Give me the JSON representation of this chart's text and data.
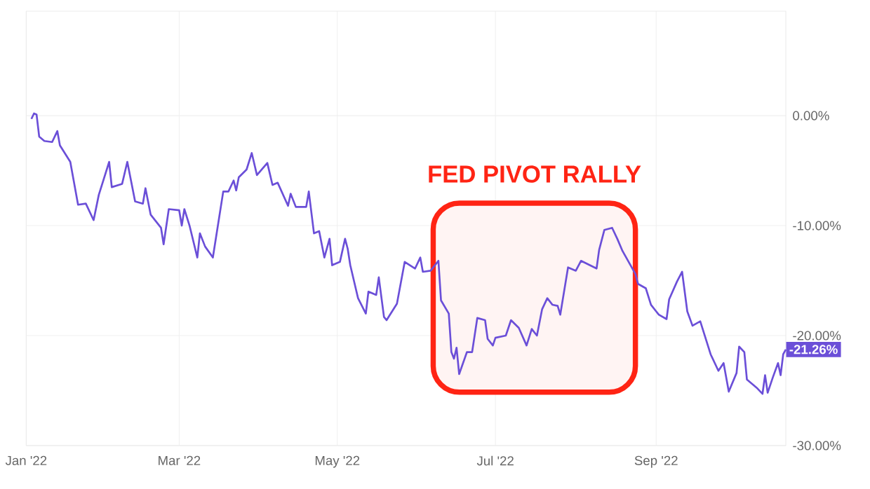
{
  "chart_data": {
    "type": "line",
    "x": [
      "2022-01-03",
      "2022-01-04",
      "2022-01-05",
      "2022-01-06",
      "2022-01-08",
      "2022-01-11",
      "2022-01-13",
      "2022-01-14",
      "2022-01-18",
      "2022-01-19",
      "2022-01-21",
      "2022-01-24",
      "2022-01-27",
      "2022-01-29",
      "2022-02-02",
      "2022-02-03",
      "2022-02-07",
      "2022-02-09",
      "2022-02-12",
      "2022-02-15",
      "2022-02-16",
      "2022-02-18",
      "2022-02-22",
      "2022-02-23",
      "2022-02-25",
      "2022-03-01",
      "2022-03-02",
      "2022-03-03",
      "2022-03-05",
      "2022-03-08",
      "2022-03-09",
      "2022-03-11",
      "2022-03-14",
      "2022-03-18",
      "2022-03-20",
      "2022-03-22",
      "2022-03-23",
      "2022-03-24",
      "2022-03-27",
      "2022-03-29",
      "2022-03-31",
      "2022-04-04",
      "2022-04-06",
      "2022-04-08",
      "2022-04-12",
      "2022-04-13",
      "2022-04-15",
      "2022-04-19",
      "2022-04-20",
      "2022-04-22",
      "2022-04-24",
      "2022-04-26",
      "2022-04-28",
      "2022-04-29",
      "2022-05-02",
      "2022-05-04",
      "2022-05-05",
      "2022-05-06",
      "2022-05-09",
      "2022-05-12",
      "2022-05-13",
      "2022-05-16",
      "2022-05-17",
      "2022-05-19",
      "2022-05-20",
      "2022-05-24",
      "2022-05-27",
      "2022-05-31",
      "2022-06-02",
      "2022-06-03",
      "2022-06-06",
      "2022-06-09",
      "2022-06-10",
      "2022-06-13",
      "2022-06-14",
      "2022-06-15",
      "2022-06-16",
      "2022-06-17",
      "2022-06-20",
      "2022-06-22",
      "2022-06-24",
      "2022-06-27",
      "2022-06-28",
      "2022-06-30",
      "2022-07-01",
      "2022-07-05",
      "2022-07-07",
      "2022-07-10",
      "2022-07-13",
      "2022-07-15",
      "2022-07-17",
      "2022-07-19",
      "2022-07-21",
      "2022-07-23",
      "2022-07-25",
      "2022-07-26",
      "2022-07-29",
      "2022-08-01",
      "2022-08-03",
      "2022-08-09",
      "2022-08-10",
      "2022-08-12",
      "2022-08-15",
      "2022-08-17",
      "2022-08-19",
      "2022-08-24",
      "2022-08-25",
      "2022-08-28",
      "2022-08-30",
      "2022-09-01",
      "2022-09-02",
      "2022-09-05",
      "2022-09-06",
      "2022-09-09",
      "2022-09-11",
      "2022-09-13",
      "2022-09-15",
      "2022-09-18",
      "2022-09-22",
      "2022-09-25",
      "2022-09-27",
      "2022-09-29",
      "2022-10-02",
      "2022-10-03",
      "2022-10-05",
      "2022-10-06",
      "2022-10-10",
      "2022-10-12",
      "2022-10-13",
      "2022-10-14",
      "2022-10-16",
      "2022-10-18",
      "2022-10-19",
      "2022-10-20",
      "2022-10-21"
    ],
    "values": [
      -0.3,
      0.2,
      0.1,
      -1.9,
      -2.3,
      -2.4,
      -1.4,
      -2.7,
      -4.2,
      -5.5,
      -8.1,
      -8.0,
      -9.5,
      -7.2,
      -4.2,
      -6.5,
      -6.2,
      -4.2,
      -7.8,
      -8.0,
      -6.6,
      -9.0,
      -10.2,
      -11.7,
      -8.5,
      -8.6,
      -10.0,
      -8.5,
      -10.0,
      -12.9,
      -10.7,
      -11.9,
      -12.9,
      -6.9,
      -6.9,
      -5.9,
      -6.8,
      -5.6,
      -4.9,
      -3.4,
      -5.4,
      -4.3,
      -6.3,
      -6.1,
      -8.2,
      -7.1,
      -8.3,
      -8.3,
      -6.9,
      -10.7,
      -10.5,
      -12.9,
      -11.2,
      -13.6,
      -13.3,
      -11.2,
      -12.1,
      -13.6,
      -16.6,
      -18.0,
      -16.0,
      -16.3,
      -14.7,
      -18.3,
      -18.6,
      -17.1,
      -13.3,
      -13.9,
      -12.9,
      -14.2,
      -14.1,
      -13.2,
      -16.8,
      -18.0,
      -21.5,
      -22.1,
      -21.1,
      -23.5,
      -21.5,
      -21.5,
      -18.4,
      -18.6,
      -20.3,
      -20.9,
      -20.2,
      -20.0,
      -18.6,
      -19.3,
      -20.9,
      -19.4,
      -20.0,
      -17.6,
      -16.6,
      -17.2,
      -17.3,
      -18.1,
      -13.8,
      -14.1,
      -13.2,
      -13.9,
      -12.2,
      -10.4,
      -10.2,
      -11.2,
      -12.3,
      -14.4,
      -15.3,
      -15.7,
      -17.2,
      -17.8,
      -18.1,
      -18.5,
      -16.7,
      -15.1,
      -14.2,
      -17.8,
      -19.1,
      -18.7,
      -21.7,
      -23.2,
      -22.5,
      -25.1,
      -23.4,
      -21.0,
      -21.5,
      -24.0,
      -24.8,
      -25.3,
      -23.6,
      -25.2,
      -23.8,
      -22.5,
      -23.6,
      -21.7,
      -21.26
    ],
    "value_labels": [
      null,
      null,
      null,
      null,
      null,
      null,
      null,
      null,
      null,
      null,
      null,
      null,
      null,
      null,
      null,
      null,
      null,
      null,
      null,
      null,
      null,
      null,
      null,
      null,
      null,
      null,
      null,
      null,
      null,
      null,
      null,
      null,
      null,
      null,
      null,
      null,
      null,
      null,
      null,
      null,
      null,
      null,
      null,
      null,
      null,
      null,
      null,
      null,
      null,
      null,
      null,
      null,
      null,
      null,
      null,
      null,
      null,
      null,
      null,
      null,
      null,
      null,
      null,
      null,
      null,
      null,
      null,
      null,
      null,
      null,
      null,
      null,
      null,
      null,
      null,
      null,
      null,
      null,
      null,
      null,
      null,
      null,
      null,
      null,
      null,
      null,
      null,
      null,
      null,
      null,
      null,
      null,
      null,
      null,
      null,
      null,
      null,
      null,
      null,
      null,
      null,
      null,
      null,
      null,
      null,
      null,
      null,
      null,
      null,
      null,
      null,
      null,
      null,
      null,
      null,
      null,
      null,
      null,
      null,
      null,
      null,
      null,
      null,
      null,
      null,
      null,
      null,
      null,
      null,
      null,
      null,
      null,
      null,
      null,
      "-21.26%"
    ],
    "color": "#6b4fd8",
    "xlim": [
      "2022-01-01",
      "2022-10-21"
    ],
    "xticks": [
      {
        "value": "2022-01-01",
        "label": "Jan '22"
      },
      {
        "value": "2022-03-01",
        "label": "Mar '22"
      },
      {
        "value": "2022-05-01",
        "label": "May '22"
      },
      {
        "value": "2022-07-01",
        "label": "Jul '22"
      },
      {
        "value": "2022-09-01",
        "label": "Sep '22"
      }
    ],
    "ylim": [
      -30,
      9.5
    ],
    "yticks": [
      {
        "value": -30,
        "label": "-30.00%"
      },
      {
        "value": -20,
        "label": "-20.00%"
      },
      {
        "value": -10,
        "label": "-10.00%"
      },
      {
        "value": 0,
        "label": "0.00%"
      }
    ],
    "grid": true,
    "bands": [
      {
        "axis": "x",
        "from": "2022-06-07",
        "to": "2022-08-24",
        "label": "FED PIVOT RALLY",
        "color": "#ff2414"
      }
    ]
  }
}
